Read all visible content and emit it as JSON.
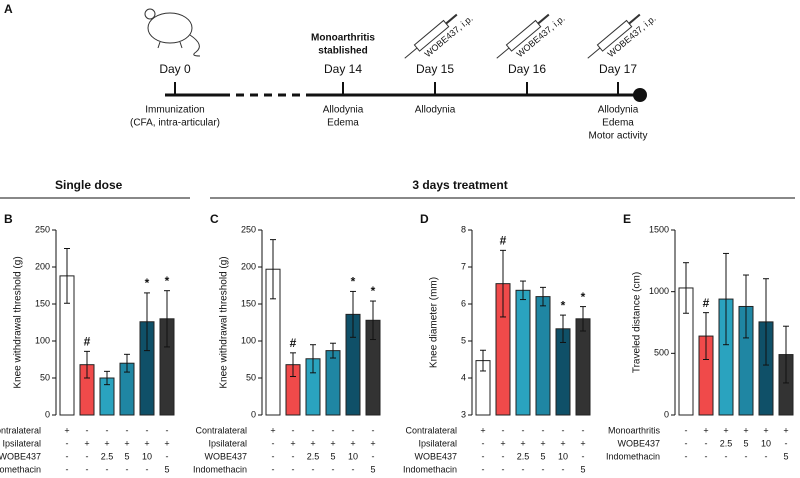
{
  "figure_label": "A",
  "timeline": [
    {
      "day": "Day 0",
      "below": [
        "Immunization",
        "(CFA, intra-articular)"
      ]
    },
    {
      "day": "Day 14",
      "above": [
        "Monoarthritis",
        "stablished"
      ],
      "below": [
        "Allodynia",
        "Edema"
      ]
    },
    {
      "day": "Day 15",
      "injection": "WOBE437, i.p.",
      "below": [
        "Allodynia"
      ]
    },
    {
      "day": "Day 16",
      "injection": "WOBE437, i.p."
    },
    {
      "day": "Day 17",
      "injection": "WOBE437, i.p.",
      "below": [
        "Allodynia",
        "Edema",
        "Motor activity"
      ]
    }
  ],
  "sections": [
    "Single dose",
    "3 days treatment"
  ],
  "chart_data": [
    {
      "type": "bar",
      "label": "B",
      "ylabel": "Knee withdrawal threshold (g)",
      "values": [
        188,
        68,
        50,
        70,
        126,
        130
      ],
      "errors": [
        37,
        18,
        9,
        12,
        39,
        38
      ],
      "annotations": [
        null,
        "#",
        null,
        null,
        "*",
        "*"
      ],
      "colors": [
        "#ffffff",
        "#f04a4a",
        "#2aa3bf",
        "#1f86a3",
        "#0f5068",
        "#333333"
      ],
      "ylim": [
        0,
        250
      ],
      "yticks": [
        0,
        50,
        100,
        150,
        200,
        250
      ],
      "table": [
        {
          "label": "Contralateral",
          "cells": [
            "+",
            "-",
            "-",
            "-",
            "-",
            "-"
          ]
        },
        {
          "label": "Ipsilateral",
          "cells": [
            "-",
            "+",
            "+",
            "+",
            "+",
            "+"
          ]
        },
        {
          "label": "WOBE437",
          "cells": [
            "-",
            "-",
            "2.5",
            "5",
            "10",
            "-"
          ]
        },
        {
          "label": "Indomethacin",
          "cells": [
            "-",
            "-",
            "-",
            "-",
            "-",
            "5"
          ]
        }
      ]
    },
    {
      "type": "bar",
      "label": "C",
      "ylabel": "Knee withdrawal threshold (g)",
      "values": [
        197,
        68,
        76,
        87,
        136,
        128
      ],
      "errors": [
        40,
        16,
        19,
        10,
        31,
        26
      ],
      "annotations": [
        null,
        "#",
        null,
        null,
        "*",
        "*"
      ],
      "colors": [
        "#ffffff",
        "#f04a4a",
        "#2aa3bf",
        "#1f86a3",
        "#0f5068",
        "#333333"
      ],
      "ylim": [
        0,
        250
      ],
      "yticks": [
        0,
        50,
        100,
        150,
        200,
        250
      ],
      "table": [
        {
          "label": "Contralateral",
          "cells": [
            "+",
            "-",
            "-",
            "-",
            "-",
            "-"
          ]
        },
        {
          "label": "Ipsilateral",
          "cells": [
            "-",
            "+",
            "+",
            "+",
            "+",
            "+"
          ]
        },
        {
          "label": "WOBE437",
          "cells": [
            "-",
            "-",
            "2.5",
            "5",
            "10",
            "-"
          ]
        },
        {
          "label": "Indomethacin",
          "cells": [
            "-",
            "-",
            "-",
            "-",
            "-",
            "5"
          ]
        }
      ]
    },
    {
      "type": "bar",
      "label": "D",
      "ylabel": "Knee diameter (mm)",
      "values": [
        4.47,
        6.55,
        6.37,
        6.2,
        5.33,
        5.6
      ],
      "errors": [
        0.28,
        0.9,
        0.25,
        0.25,
        0.37,
        0.33
      ],
      "annotations": [
        null,
        "#",
        null,
        null,
        "*",
        "*"
      ],
      "colors": [
        "#ffffff",
        "#f04a4a",
        "#2aa3bf",
        "#1f86a3",
        "#0f5068",
        "#333333"
      ],
      "ylim": [
        3,
        8
      ],
      "yticks": [
        3,
        4,
        5,
        6,
        7,
        8
      ],
      "table": [
        {
          "label": "Contralateral",
          "cells": [
            "+",
            "-",
            "-",
            "-",
            "-",
            "-"
          ]
        },
        {
          "label": "Ipsilateral",
          "cells": [
            "-",
            "+",
            "+",
            "+",
            "+",
            "+"
          ]
        },
        {
          "label": "WOBE437",
          "cells": [
            "-",
            "-",
            "2.5",
            "5",
            "10",
            "-"
          ]
        },
        {
          "label": "Indomethacin",
          "cells": [
            "-",
            "-",
            "-",
            "-",
            "-",
            "5"
          ]
        }
      ]
    },
    {
      "type": "bar",
      "label": "E",
      "ylabel": "Traveled distance (cm)",
      "values": [
        1030,
        640,
        940,
        880,
        755,
        490
      ],
      "errors": [
        205,
        190,
        370,
        255,
        350,
        230
      ],
      "annotations": [
        null,
        "#",
        null,
        null,
        null,
        null
      ],
      "colors": [
        "#ffffff",
        "#f04a4a",
        "#2aa3bf",
        "#1f86a3",
        "#0f5068",
        "#333333"
      ],
      "ylim": [
        0,
        1500
      ],
      "yticks": [
        0,
        500,
        1000,
        1500
      ],
      "table": [
        {
          "label": "Monoarthritis",
          "cells": [
            "-",
            "+",
            "+",
            "+",
            "+",
            "+"
          ]
        },
        {
          "label": "WOBE437",
          "cells": [
            "-",
            "-",
            "2.5",
            "5",
            "10",
            "-"
          ]
        },
        {
          "label": "Indomethacin",
          "cells": [
            "-",
            "-",
            "-",
            "-",
            "-",
            "5"
          ]
        }
      ]
    }
  ]
}
